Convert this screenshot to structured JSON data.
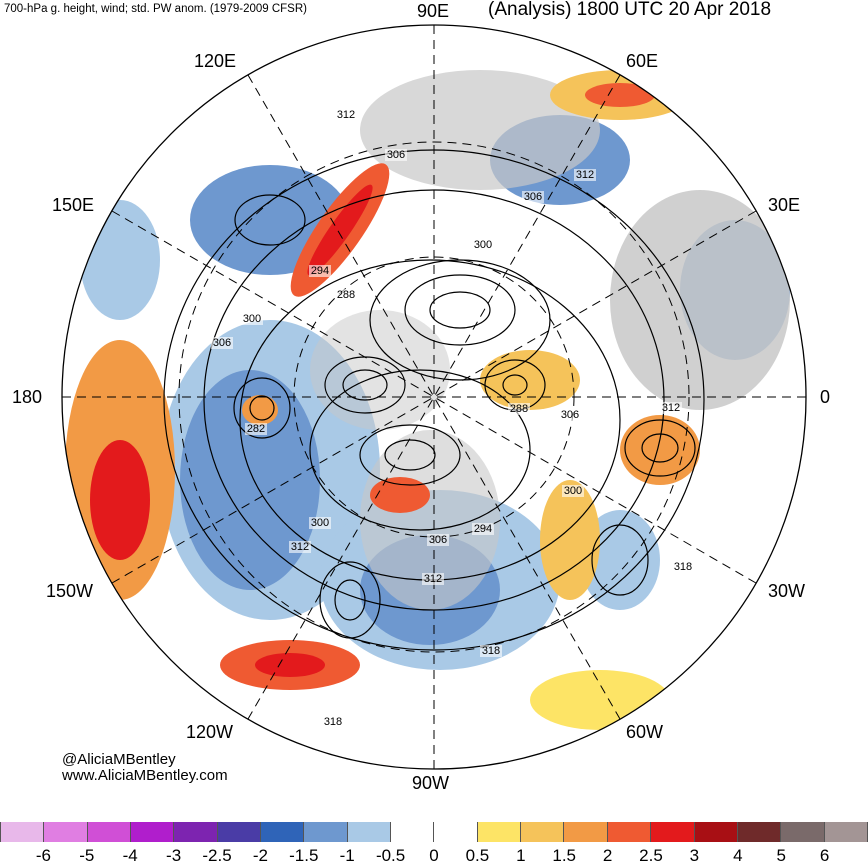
{
  "header": {
    "left_title": "700-hPa g. height, wind; std. PW anom. (1979-2009 CFSR)",
    "right_title": "(Analysis) 1800 UTC 20 Apr 2018"
  },
  "map": {
    "projection": "north-polar-stereographic",
    "longitude_labels": [
      "90E",
      "60E",
      "30E",
      "0",
      "30W",
      "60W",
      "90W",
      "120W",
      "150W",
      "180",
      "150E",
      "120E"
    ],
    "height_contour_labels": [
      "312",
      "306",
      "312",
      "306",
      "300",
      "294",
      "288",
      "300",
      "306",
      "282",
      "288",
      "306",
      "312",
      "300",
      "312",
      "306",
      "294",
      "318",
      "312",
      "318",
      "300",
      "318"
    ],
    "colors": {
      "ocean_background": "#ffffff",
      "land": "#c8c8c8",
      "contour": "#000000"
    }
  },
  "credit": {
    "twitter": "@AliciaMBentley",
    "website": "www.AliciaMBentley.com"
  },
  "colorbar": {
    "ticks": [
      "-6",
      "-5",
      "-4",
      "-3",
      "-2.5",
      "-2",
      "-1.5",
      "-1",
      "-0.5",
      "0",
      "0.5",
      "1",
      "1.5",
      "2",
      "2.5",
      "3",
      "4",
      "5",
      "6"
    ],
    "colors": [
      "#e8b8ea",
      "#e07ee2",
      "#d04fd6",
      "#b01ecc",
      "#7d24b0",
      "#4a3ca6",
      "#2f64b8",
      "#6e98cf",
      "#a9c9e6",
      "#ffffff",
      "#ffffff",
      "#fde466",
      "#f5c35a",
      "#f29a45",
      "#ef5a32",
      "#e31a1c",
      "#a80f14",
      "#6f2a2a",
      "#7a6a6a",
      "#a39595"
    ]
  }
}
